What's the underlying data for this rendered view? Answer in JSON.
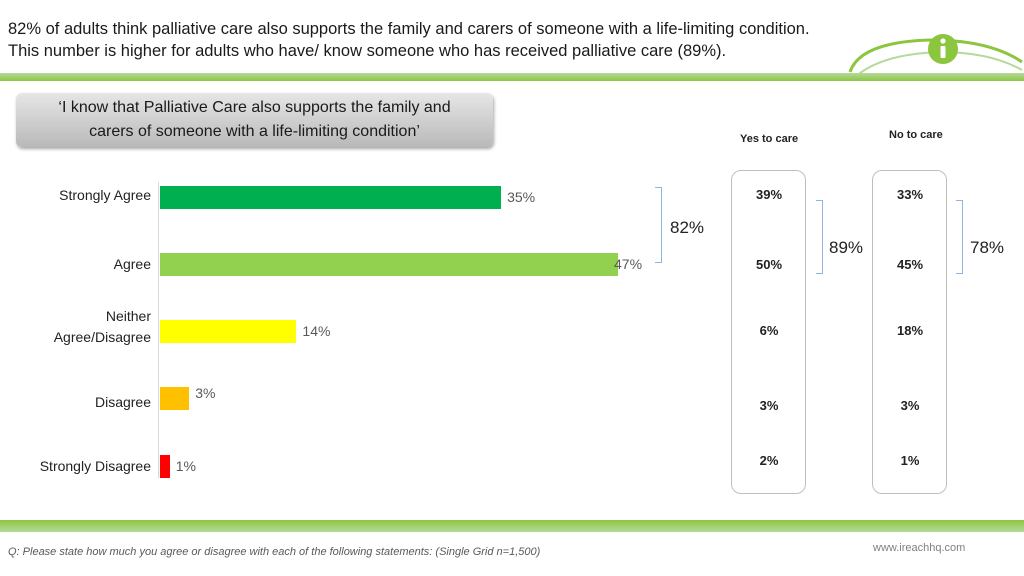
{
  "header": {
    "title_line1": "82% of adults think palliative care also supports the family and carers of someone with a life-limiting condition.",
    "title_line2": "This number is higher for adults who have/ know someone who has received palliative care (89%).",
    "logo_icon": "info-icon"
  },
  "statement": {
    "line1": "‘I know that Palliative Care also supports the family and",
    "line2": "carers of someone with a life-limiting condition’"
  },
  "columns": {
    "yes_label": "Yes to care",
    "no_label": "No to care"
  },
  "chart_data": {
    "type": "bar",
    "orientation": "horizontal",
    "categories": [
      "Strongly Agree",
      "Agree",
      "Neither Agree/Disagree",
      "Disagree",
      "Strongly Disagree"
    ],
    "values": [
      35,
      47,
      14,
      3,
      1
    ],
    "value_labels": [
      "35%",
      "47%",
      "14%",
      "3%",
      "1%"
    ],
    "colors": [
      "#00b050",
      "#92d050",
      "#ffff00",
      "#ffc000",
      "#ff0000"
    ],
    "xlim": [
      0,
      47
    ],
    "grid": false,
    "yes_to_care": [
      "39%",
      "50%",
      "6%",
      "3%",
      "2%"
    ],
    "no_to_care": [
      "33%",
      "45%",
      "18%",
      "3%",
      "1%"
    ],
    "net_agree": {
      "overall": "82%",
      "yes_to_care": "89%",
      "no_to_care": "78%"
    }
  },
  "footer": {
    "question": "Q: Please state how much you agree or disagree with each of the following statements: (Single Grid n=1,500)",
    "website": "www.ireachhq.com"
  },
  "colors": {
    "brand_green": "#8cc63f",
    "bracket_blue": "#8eb4e3"
  }
}
